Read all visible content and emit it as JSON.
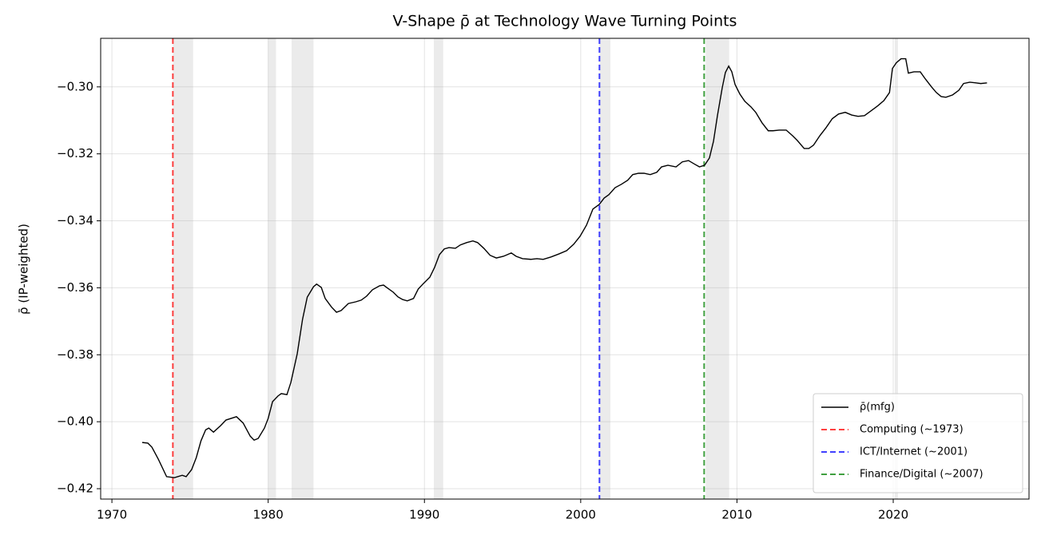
{
  "chart_data": {
    "type": "line",
    "title": "V-Shape ρ̄ at Technology Wave Turning Points",
    "y_label": "ρ̄ (IP-weighted)",
    "x": [
      1971.94,
      1972.3,
      1972.56,
      1972.97,
      1973.5,
      1974.0,
      1974.5,
      1974.75,
      1975.1,
      1975.4,
      1975.7,
      1976.0,
      1976.2,
      1976.5,
      1976.95,
      1977.3,
      1977.97,
      1978.4,
      1978.85,
      1979.1,
      1979.36,
      1979.76,
      1980.0,
      1980.28,
      1980.63,
      1980.84,
      1981.2,
      1981.45,
      1981.86,
      1982.2,
      1982.5,
      1982.9,
      1983.1,
      1983.4,
      1983.65,
      1984.06,
      1984.37,
      1984.67,
      1985.13,
      1985.6,
      1985.95,
      1986.3,
      1986.67,
      1987.13,
      1987.38,
      1987.64,
      1988.0,
      1988.3,
      1988.6,
      1988.9,
      1989.3,
      1989.6,
      1989.94,
      1990.35,
      1990.65,
      1990.96,
      1991.27,
      1991.57,
      1991.98,
      1992.3,
      1992.7,
      1993.1,
      1993.4,
      1993.8,
      1994.2,
      1994.6,
      1995.05,
      1995.56,
      1995.87,
      1996.28,
      1996.8,
      1997.2,
      1997.6,
      1998.1,
      1998.6,
      1999.1,
      1999.55,
      1999.96,
      2000.37,
      2000.78,
      2001.19,
      2001.5,
      2001.8,
      2002.2,
      2002.6,
      2003.0,
      2003.33,
      2003.7,
      2004.05,
      2004.45,
      2004.87,
      2005.17,
      2005.58,
      2006.1,
      2006.5,
      2006.9,
      2007.3,
      2007.6,
      2007.93,
      2008.24,
      2008.5,
      2008.75,
      2009.06,
      2009.26,
      2009.47,
      2009.67,
      2009.88,
      2010.18,
      2010.5,
      2010.9,
      2011.2,
      2011.6,
      2012.0,
      2012.3,
      2012.7,
      2013.15,
      2013.56,
      2013.86,
      2014.3,
      2014.6,
      2014.9,
      2015.3,
      2015.7,
      2016.1,
      2016.5,
      2016.93,
      2017.34,
      2017.75,
      2018.16,
      2018.57,
      2019.0,
      2019.4,
      2019.76,
      2019.95,
      2020.2,
      2020.5,
      2020.8,
      2020.97,
      2021.33,
      2021.73,
      2022.05,
      2022.45,
      2022.76,
      2023.07,
      2023.37,
      2023.8,
      2024.2,
      2024.5,
      2024.9,
      2025.3,
      2025.6,
      2026.0
    ],
    "series": [
      {
        "name": "ρ̄(mfg)",
        "color": "#000000",
        "values": [
          -0.4062,
          -0.4064,
          -0.4076,
          -0.4112,
          -0.4164,
          -0.4167,
          -0.416,
          -0.4164,
          -0.4143,
          -0.4107,
          -0.4057,
          -0.4024,
          -0.4019,
          -0.4031,
          -0.4012,
          -0.3995,
          -0.3985,
          -0.4004,
          -0.4043,
          -0.4055,
          -0.405,
          -0.4019,
          -0.399,
          -0.394,
          -0.3923,
          -0.3916,
          -0.3919,
          -0.3883,
          -0.3797,
          -0.3694,
          -0.3628,
          -0.3597,
          -0.3589,
          -0.3599,
          -0.3632,
          -0.3658,
          -0.3673,
          -0.3668,
          -0.3647,
          -0.3642,
          -0.3637,
          -0.3625,
          -0.3606,
          -0.3594,
          -0.3592,
          -0.3601,
          -0.3613,
          -0.3627,
          -0.3635,
          -0.3639,
          -0.3632,
          -0.3604,
          -0.3587,
          -0.3568,
          -0.3539,
          -0.3501,
          -0.3484,
          -0.348,
          -0.3482,
          -0.3472,
          -0.3465,
          -0.346,
          -0.3465,
          -0.3482,
          -0.3503,
          -0.3511,
          -0.3506,
          -0.3496,
          -0.3506,
          -0.3513,
          -0.3515,
          -0.3513,
          -0.3515,
          -0.3508,
          -0.3499,
          -0.3489,
          -0.347,
          -0.3446,
          -0.3413,
          -0.3365,
          -0.3351,
          -0.3332,
          -0.3322,
          -0.3301,
          -0.3291,
          -0.3279,
          -0.3262,
          -0.3258,
          -0.3258,
          -0.3262,
          -0.3255,
          -0.3239,
          -0.3234,
          -0.3239,
          -0.3224,
          -0.322,
          -0.3231,
          -0.3239,
          -0.3234,
          -0.3212,
          -0.3162,
          -0.3086,
          -0.3002,
          -0.2957,
          -0.2938,
          -0.2955,
          -0.2993,
          -0.3021,
          -0.3043,
          -0.306,
          -0.3076,
          -0.3107,
          -0.3131,
          -0.3131,
          -0.3129,
          -0.3129,
          -0.3146,
          -0.316,
          -0.3184,
          -0.3184,
          -0.3174,
          -0.3146,
          -0.3122,
          -0.3095,
          -0.3081,
          -0.3076,
          -0.3084,
          -0.3088,
          -0.3086,
          -0.3072,
          -0.3057,
          -0.3041,
          -0.3017,
          -0.2945,
          -0.2928,
          -0.2916,
          -0.2916,
          -0.2959,
          -0.2955,
          -0.2955,
          -0.2976,
          -0.3,
          -0.3017,
          -0.3029,
          -0.3031,
          -0.3024,
          -0.301,
          -0.299,
          -0.2986,
          -0.2988,
          -0.299,
          -0.2988
        ]
      }
    ],
    "reference_lines": [
      {
        "name": "Computing (~1973)",
        "color": "#ff0000",
        "x": 1973.9
      },
      {
        "name": "ICT/Internet (~2001)",
        "color": "#0000ff",
        "x": 2001.2
      },
      {
        "name": "Finance/Digital (~2007)",
        "color": "#008000",
        "x": 2007.9
      }
    ],
    "shaded_spans": [
      [
        1973.9,
        1975.2
      ],
      [
        1980.0,
        1980.5
      ],
      [
        1981.5,
        1982.9
      ],
      [
        1990.6,
        1991.2
      ],
      [
        2001.2,
        2001.9
      ],
      [
        2008.0,
        2009.5
      ],
      [
        2020.1,
        2020.3
      ]
    ],
    "xlim": [
      1969.28,
      2028.69
    ],
    "ylim": [
      -0.4231,
      -0.2855
    ],
    "xticks": [
      1970,
      1980,
      1990,
      2000,
      2010,
      2020
    ],
    "yticks": [
      {
        "value": -0.42,
        "label": "−0.42"
      },
      {
        "value": -0.4,
        "label": "−0.40"
      },
      {
        "value": -0.38,
        "label": "−0.38"
      },
      {
        "value": -0.36,
        "label": "−0.36"
      },
      {
        "value": -0.34,
        "label": "−0.34"
      },
      {
        "value": -0.32,
        "label": "−0.32"
      },
      {
        "value": -0.3,
        "label": "−0.30"
      }
    ],
    "grid": true,
    "legend": "lower right"
  }
}
